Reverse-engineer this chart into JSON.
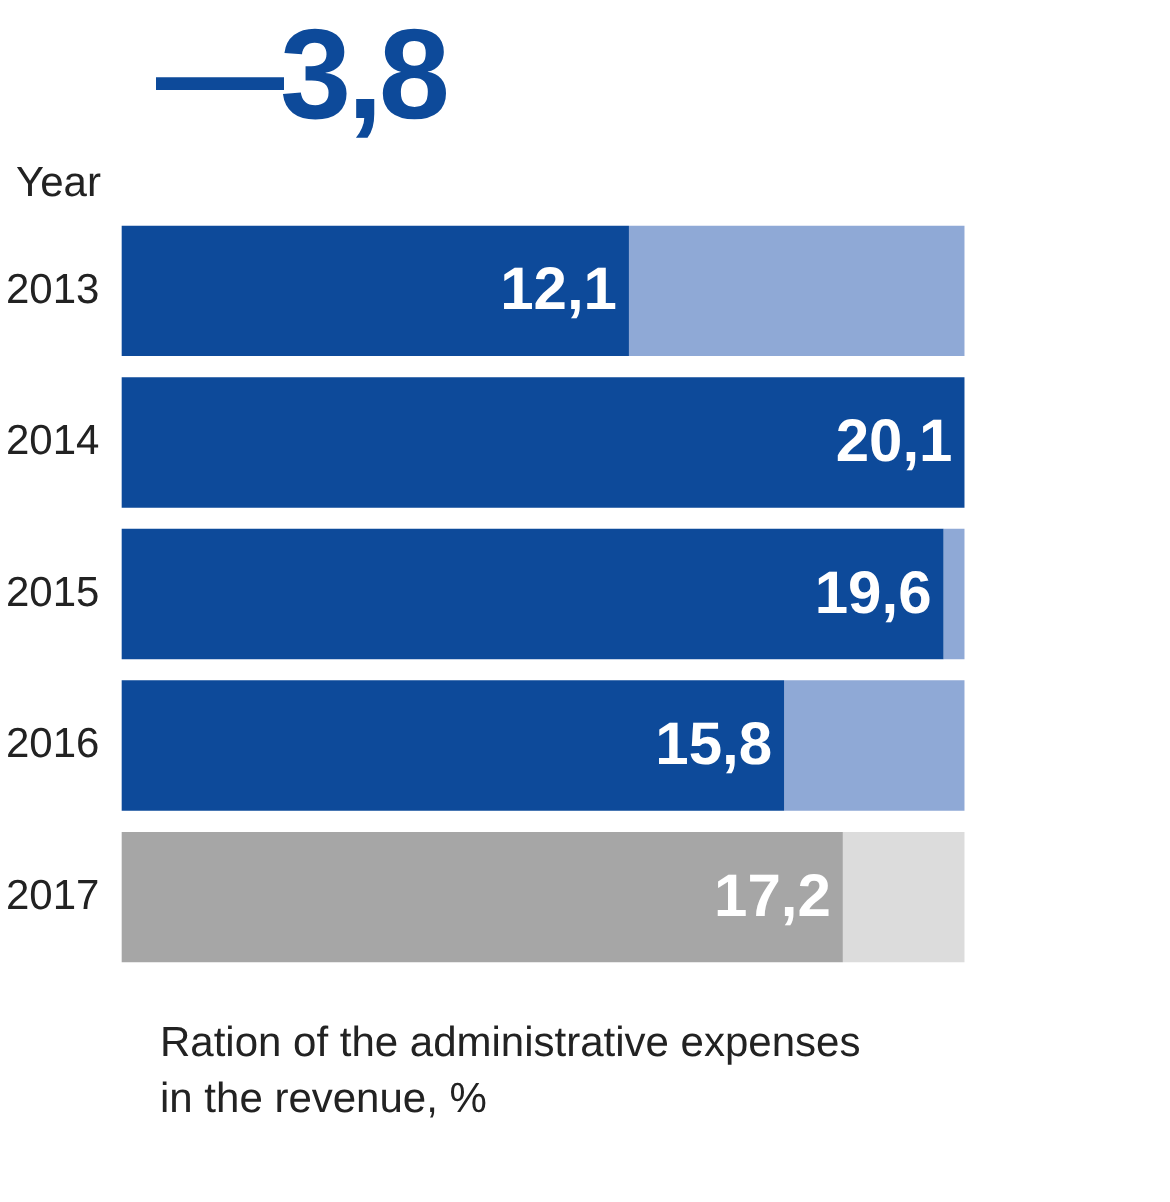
{
  "chart_data": {
    "type": "bar",
    "orientation": "horizontal",
    "stacked": true,
    "title": "—3,8",
    "ylabel": "Year",
    "xlabel": "Ration of the administrative expenses\nin the revenue, %",
    "categories": [
      "2013",
      "2014",
      "2015",
      "2016",
      "2017"
    ],
    "series": [
      {
        "colors": [
          "#0d4a9a",
          "#0d4a9a",
          "#0d4a9a",
          "#0d4a9a",
          "#a6a6a6"
        ],
        "values": [
          12.1,
          20.1,
          19.6,
          15.8,
          17.2
        ],
        "value_labels": [
          "12,1",
          "20,1",
          "19,6",
          "15,8",
          "17,2"
        ]
      },
      {
        "colors": [
          "#8fa9d6",
          "#8fa9d6",
          "#8fa9d6",
          "#8fa9d6",
          "#dcdcdc"
        ],
        "values": [
          8.0,
          0,
          0.5,
          4.3,
          2.9
        ]
      }
    ],
    "legend": false
  }
}
